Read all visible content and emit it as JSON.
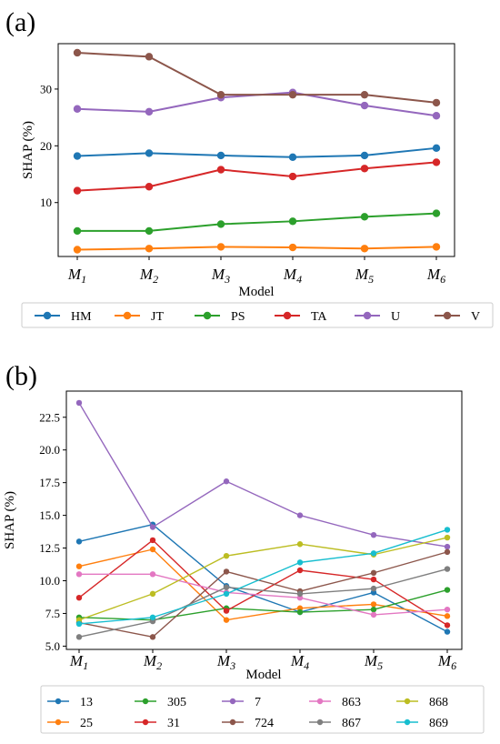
{
  "chart_data": [
    {
      "type": "line",
      "panel_label": "(a)",
      "xlabel": "Model",
      "ylabel": "SHAP (%)",
      "categories": [
        {
          "base": "M",
          "sub": "1"
        },
        {
          "base": "M",
          "sub": "2"
        },
        {
          "base": "M",
          "sub": "3"
        },
        {
          "base": "M",
          "sub": "4"
        },
        {
          "base": "M",
          "sub": "5"
        },
        {
          "base": "M",
          "sub": "6"
        }
      ],
      "ylim": [
        0.5,
        38
      ],
      "yticks": [
        10,
        20,
        30
      ],
      "grid": false,
      "legend": {
        "placement": "bottom",
        "columns": 6
      },
      "series": [
        {
          "name": "HM",
          "color": "#1f77b4",
          "values": [
            18.2,
            18.7,
            18.3,
            18.0,
            18.3,
            19.6
          ]
        },
        {
          "name": "JT",
          "color": "#ff7f0e",
          "values": [
            1.7,
            1.9,
            2.2,
            2.1,
            1.9,
            2.2
          ]
        },
        {
          "name": "PS",
          "color": "#2ca02c",
          "values": [
            5.0,
            5.0,
            6.2,
            6.7,
            7.5,
            8.1
          ]
        },
        {
          "name": "TA",
          "color": "#d62728",
          "values": [
            12.1,
            12.8,
            15.8,
            14.6,
            16.0,
            17.1
          ]
        },
        {
          "name": "U",
          "color": "#9467bd",
          "values": [
            26.5,
            26.0,
            28.5,
            29.4,
            27.1,
            25.3
          ]
        },
        {
          "name": "V",
          "color": "#8c564b",
          "values": [
            36.4,
            35.7,
            29.0,
            29.0,
            29.0,
            27.6
          ]
        }
      ]
    },
    {
      "type": "line",
      "panel_label": "(b)",
      "xlabel": "Model",
      "ylabel": "SHAP (%)",
      "categories": [
        {
          "base": "M",
          "sub": "1"
        },
        {
          "base": "M",
          "sub": "2"
        },
        {
          "base": "M",
          "sub": "3"
        },
        {
          "base": "M",
          "sub": "4"
        },
        {
          "base": "M",
          "sub": "5"
        },
        {
          "base": "M",
          "sub": "6"
        }
      ],
      "ylim": [
        4.75,
        24.5
      ],
      "yticks": [
        "5.0",
        "7.5",
        "10.0",
        "12.5",
        "15.0",
        "17.5",
        "20.0",
        "22.5"
      ],
      "grid": false,
      "legend": {
        "placement": "bottom",
        "columns": 5
      },
      "series": [
        {
          "name": "13",
          "color": "#1f77b4",
          "values": [
            13.0,
            14.3,
            9.6,
            7.6,
            9.1,
            6.1
          ]
        },
        {
          "name": "25",
          "color": "#ff7f0e",
          "values": [
            11.1,
            12.4,
            7.0,
            7.9,
            8.2,
            7.3
          ]
        },
        {
          "name": "305",
          "color": "#2ca02c",
          "values": [
            7.2,
            7.0,
            7.9,
            7.6,
            7.8,
            9.3
          ]
        },
        {
          "name": "31",
          "color": "#d62728",
          "values": [
            8.7,
            13.1,
            7.7,
            10.8,
            10.1,
            6.6
          ]
        },
        {
          "name": "7",
          "color": "#9467bd",
          "values": [
            23.6,
            14.1,
            17.6,
            15.0,
            13.5,
            12.6
          ]
        },
        {
          "name": "724",
          "color": "#8c564b",
          "values": [
            6.8,
            5.7,
            10.7,
            9.2,
            10.6,
            12.2
          ]
        },
        {
          "name": "863",
          "color": "#e377c2",
          "values": [
            10.5,
            10.5,
            9.1,
            8.7,
            7.4,
            7.8
          ]
        },
        {
          "name": "867",
          "color": "#7f7f7f",
          "values": [
            5.7,
            6.9,
            9.5,
            9.0,
            9.4,
            10.9
          ]
        },
        {
          "name": "868",
          "color": "#bcbd22",
          "values": [
            7.0,
            9.0,
            11.9,
            12.8,
            12.0,
            13.3
          ]
        },
        {
          "name": "869",
          "color": "#17becf",
          "values": [
            6.7,
            7.2,
            9.0,
            11.4,
            12.1,
            13.9
          ]
        }
      ]
    }
  ]
}
